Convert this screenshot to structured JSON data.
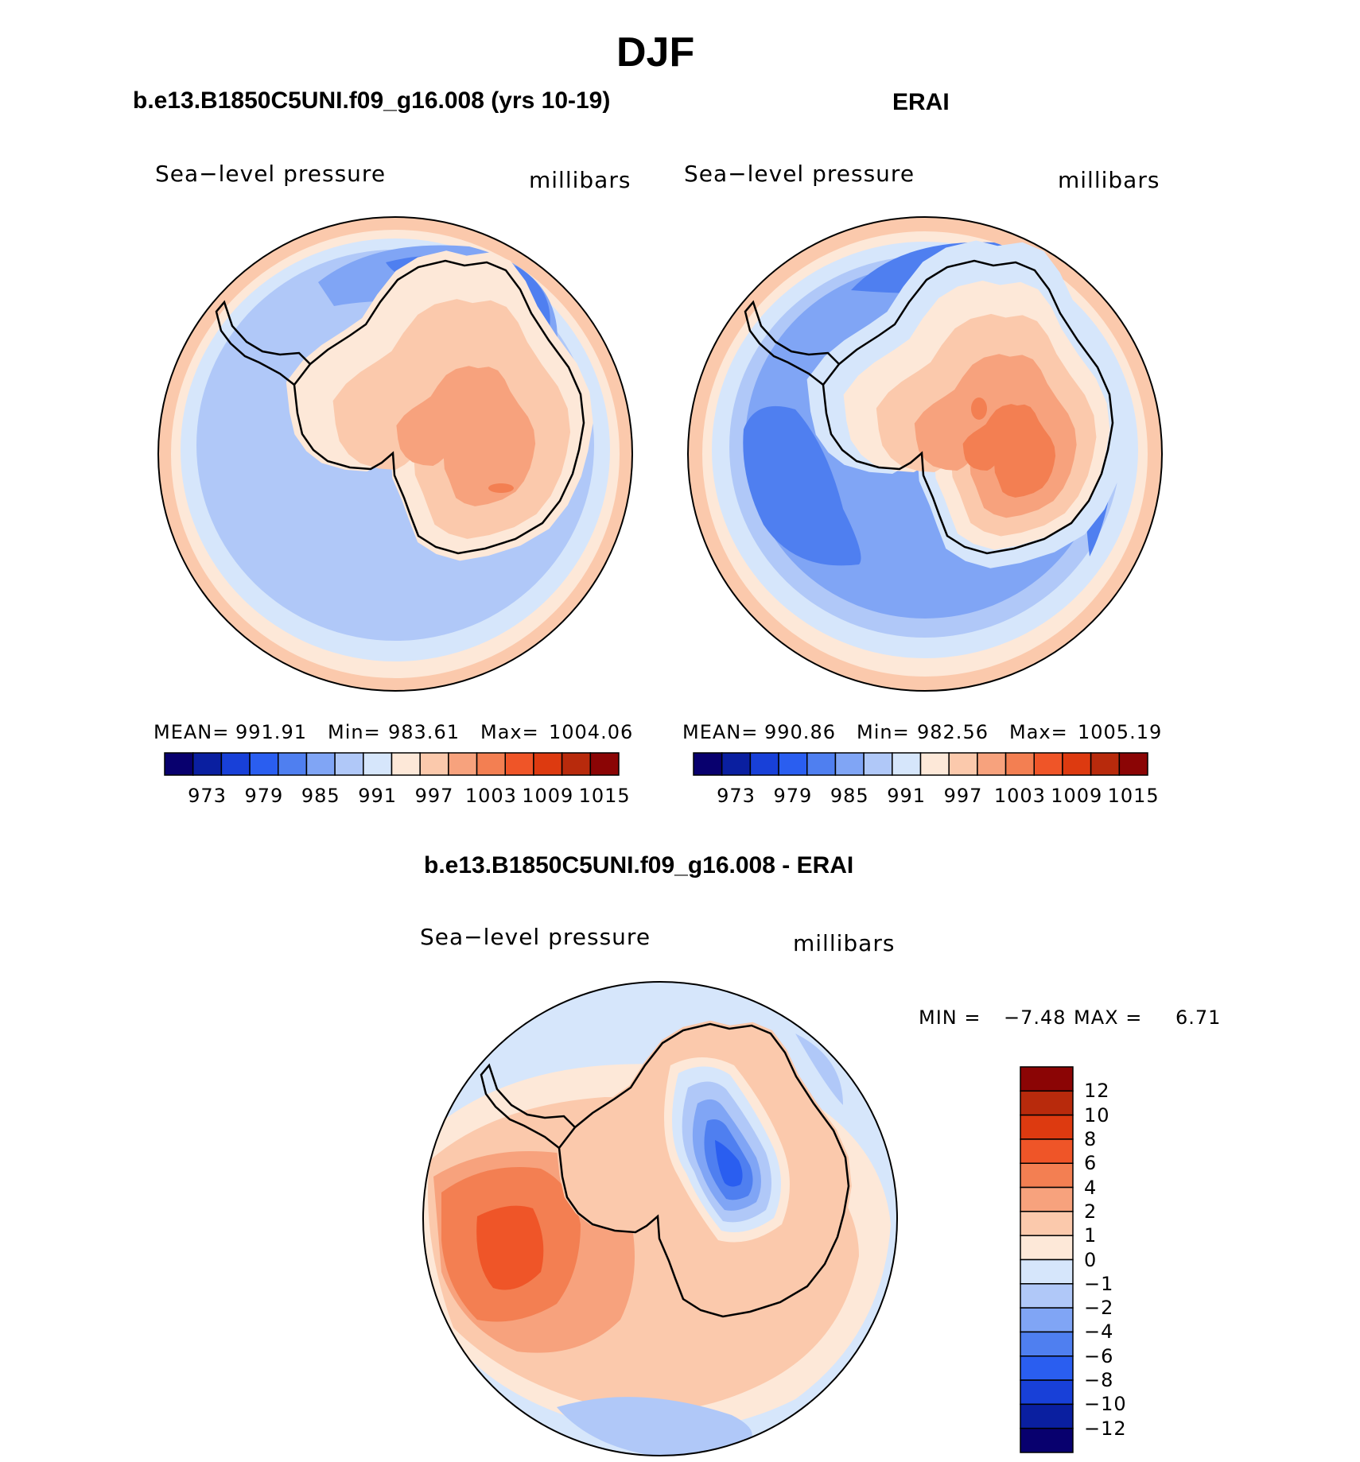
{
  "figure": {
    "season": "DJF"
  },
  "panels": [
    {
      "title": "b.e13.B1850C5UNI.f09_g16.008 (yrs 10-19)",
      "variable": "Sea−level pressure",
      "units": "millibars",
      "stats": {
        "mean_label": "MEAN=",
        "mean": "991.91",
        "min_label": "Min=",
        "min": "983.61",
        "max_label": "Max=",
        "max": "1004.06"
      },
      "colorbar_ticks": [
        "973",
        "979",
        "985",
        "991",
        "997",
        "1003",
        "1009",
        "1015"
      ]
    },
    {
      "title": "ERAI",
      "variable": "Sea−level pressure",
      "units": "millibars",
      "stats": {
        "mean_label": "MEAN=",
        "mean": "990.86",
        "min_label": "Min=",
        "min": "982.56",
        "max_label": "Max=",
        "max": "1005.19"
      },
      "colorbar_ticks": [
        "973",
        "979",
        "985",
        "991",
        "997",
        "1003",
        "1009",
        "1015"
      ]
    },
    {
      "title": "b.e13.B1850C5UNI.f09_g16.008 - ERAI",
      "variable": "Sea−level pressure",
      "units": "millibars",
      "stats": {
        "min_label": "MIN =",
        "min": "−7.48",
        "max_label": "MAX =",
        "max": "6.71"
      },
      "colorbar_ticks": [
        "12",
        "10",
        "8",
        "6",
        "4",
        "2",
        "1",
        "0",
        "−1",
        "−2",
        "−4",
        "−6",
        "−8",
        "−10",
        "−12"
      ]
    }
  ],
  "colors": {
    "abs_scale": [
      "#08006e",
      "#0a1fa0",
      "#1840d8",
      "#2a5ef0",
      "#4f7ff0",
      "#80a5f5",
      "#b0c8f8",
      "#d6e6fb",
      "#fde8d8",
      "#fbc9ac",
      "#f7a27d",
      "#f37f52",
      "#ef5528",
      "#dd3a10",
      "#b82a0c",
      "#8b0505"
    ],
    "diff_scale": [
      "#8b0505",
      "#b82a0c",
      "#dd3a10",
      "#ef5528",
      "#f37f52",
      "#f7a27d",
      "#fbc9ac",
      "#fde8d8",
      "#d6e6fb",
      "#b0c8f8",
      "#80a5f5",
      "#4f7ff0",
      "#2a5ef0",
      "#1840d8",
      "#0a1fa0",
      "#08006e"
    ]
  }
}
